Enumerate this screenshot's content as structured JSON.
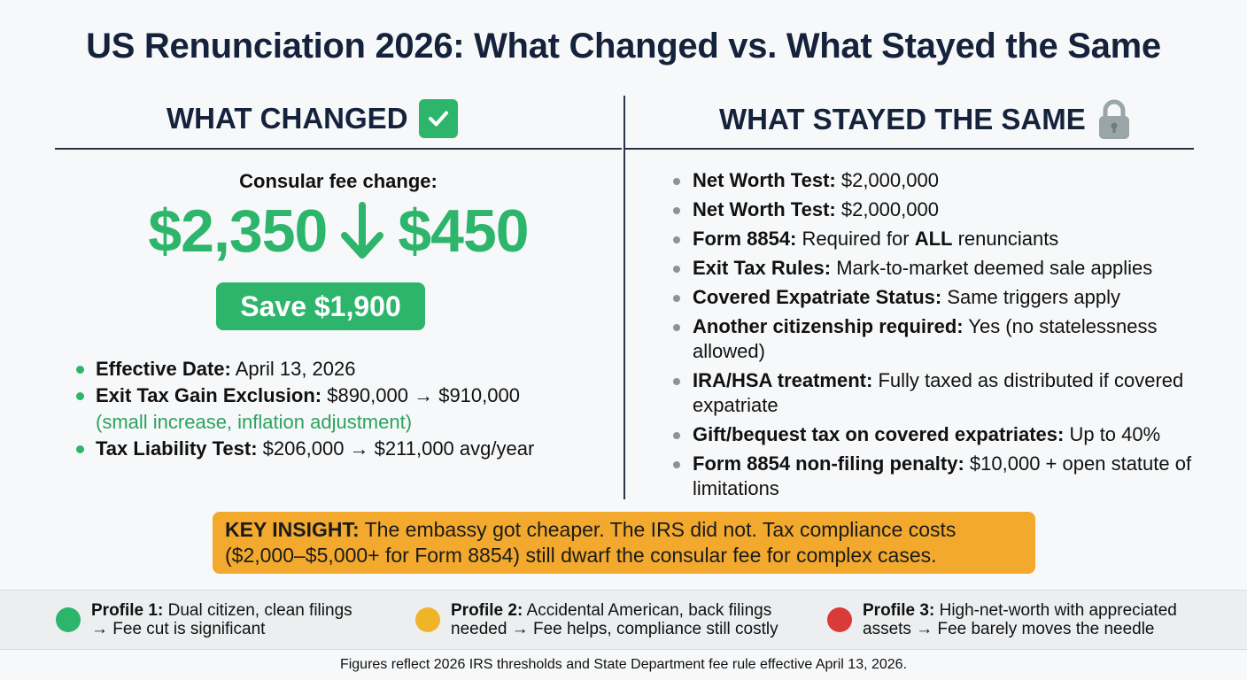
{
  "title": "US Renunciation 2026: What Changed vs. What Stayed the Same",
  "changed": {
    "heading": "WHAT CHANGED",
    "fee_label": "Consular fee change:",
    "fee_old": "$2,350",
    "fee_new": "$450",
    "save_label": "Save $1,900",
    "items": [
      {
        "label": "Effective Date:",
        "text": " April 13, 2026",
        "note": ""
      },
      {
        "label": "Exit Tax Gain Exclusion:",
        "text": " $890,000 → $910,000",
        "note": "(small increase, inflation adjustment)"
      },
      {
        "label": "Tax Liability Test:",
        "text": " $206,000 → $211,000 avg/year",
        "note": ""
      }
    ]
  },
  "same": {
    "heading": "WHAT STAYED THE SAME",
    "items": [
      {
        "label": "Net Worth Test:",
        "text": " $2,000,000"
      },
      {
        "label": "Net Worth Test:",
        "text": " $2,000,000"
      },
      {
        "label": "Form 8854:",
        "text": " Required for ",
        "strong": "ALL",
        "tail": " renunciants"
      },
      {
        "label": "Exit Tax Rules:",
        "text": " Mark-to-market deemed sale applies"
      },
      {
        "label": "Covered Expatriate Status:",
        "text": " Same triggers apply"
      },
      {
        "label": "Another citizenship required:",
        "text": " Yes (no statelessness allowed)"
      },
      {
        "label": "IRA/HSA treatment:",
        "text": " Fully taxed as distributed if covered expatriate"
      },
      {
        "label": "Gift/bequest tax on covered expatriates:",
        "text": " Up to 40%"
      },
      {
        "label": "Form 8854 non-filing penalty:",
        "text": " $10,000 + open statute of limitations"
      }
    ]
  },
  "insight": {
    "label": "KEY INSIGHT:",
    "text": " The embassy got cheaper. The IRS did not. Tax compliance costs ($2,000–$5,000+ for Form 8854) still dwarf the consular fee for complex cases."
  },
  "profiles": [
    {
      "label": "Profile 1:",
      "line1": " Dual citizen, clean filings",
      "line2": "→ Fee cut is significant",
      "color": "#2db56b"
    },
    {
      "label": "Profile 2:",
      "line1": " Accidental American, back filings",
      "line2": "needed → Fee helps, compliance still costly",
      "color": "#f0b429"
    },
    {
      "label": "Profile 3:",
      "line1": " High-net-worth with appreciated",
      "line2": "assets → Fee barely moves the needle",
      "color": "#d93a3a"
    }
  ],
  "footnote": "Figures reflect 2026 IRS thresholds and State Department fee rule effective April 13, 2026.",
  "icons": {
    "changed": "check-icon",
    "same": "lock-icon",
    "fee_arrow": "arrow-down-icon"
  }
}
